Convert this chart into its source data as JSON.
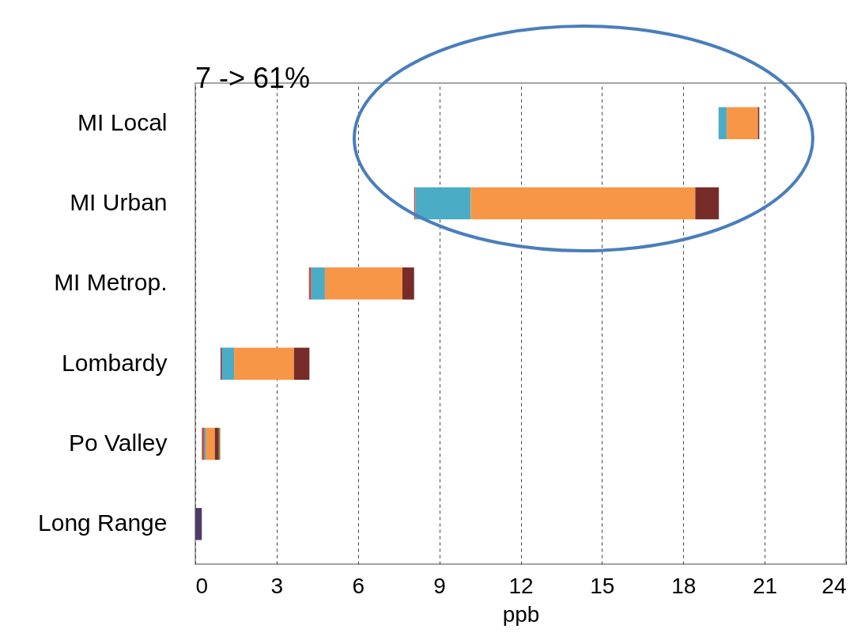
{
  "chart_data": {
    "type": "bar",
    "orientation": "horizontal",
    "categories": [
      "MI Local",
      "MI Urban",
      "MI Metrop.",
      "Lombardy",
      "Po Valley",
      "Long Range"
    ],
    "series": [
      {
        "color": "#4f3b66",
        "base": [
          null,
          null,
          null,
          0.93,
          null,
          0
        ],
        "values": [
          null,
          null,
          null,
          0.03,
          null,
          0.24
        ]
      },
      {
        "color": "#c0504d",
        "base": [
          null,
          8.07,
          4.19,
          0.96,
          0.24,
          null
        ],
        "values": [
          null,
          0.05,
          0.09,
          0.03,
          0.08,
          null
        ]
      },
      {
        "color": "#4bacc6",
        "base": [
          19.3,
          8.12,
          4.28,
          0.99,
          0.32,
          null
        ],
        "values": [
          0.3,
          2.04,
          0.5,
          0.44,
          0.06,
          null
        ]
      },
      {
        "color": "#f79646",
        "base": [
          19.6,
          10.16,
          4.78,
          1.43,
          0.38,
          null
        ],
        "values": [
          1.15,
          8.28,
          2.86,
          2.21,
          0.34,
          null
        ]
      },
      {
        "color": "#772c2a",
        "base": [
          20.75,
          18.44,
          7.64,
          3.64,
          0.72,
          null
        ],
        "values": [
          0.05,
          0.87,
          0.43,
          0.57,
          0.15,
          null
        ]
      },
      {
        "color": "#77933c",
        "base": [
          null,
          null,
          null,
          null,
          0.87,
          null
        ],
        "values": [
          null,
          null,
          null,
          null,
          0.05,
          null
        ]
      }
    ],
    "xlim": [
      0,
      24
    ],
    "xticks": [
      0,
      3,
      6,
      9,
      12,
      15,
      18,
      21,
      24
    ],
    "xlabel": "ppb",
    "grid": "x",
    "legend": false,
    "annotations": [
      "7 -> 61%"
    ]
  }
}
